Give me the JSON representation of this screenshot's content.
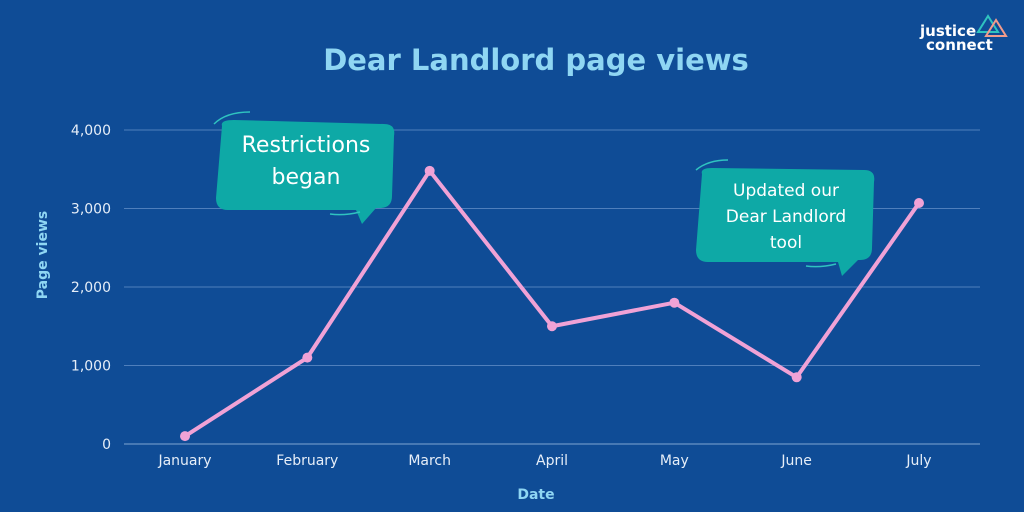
{
  "logo": {
    "line1": "justice",
    "line2": "connect"
  },
  "chart_data": {
    "type": "line",
    "title": "Dear Landlord page views",
    "xlabel": "Date",
    "ylabel": "Page views",
    "categories": [
      "January",
      "February",
      "March",
      "April",
      "May",
      "June",
      "July"
    ],
    "series": [
      {
        "values": [
          100,
          1100,
          3480,
          1500,
          1800,
          850,
          3070
        ]
      }
    ],
    "ylim": [
      0,
      4000
    ],
    "yticks": [
      "0",
      "1,000",
      "2,000",
      "3,000",
      "4,000"
    ],
    "grid": true,
    "colors": {
      "background": "#0f4c96",
      "line": "#f0a2d6",
      "title": "#8fd6f3",
      "callout": "#0ea9a6"
    },
    "annotations": [
      {
        "lines": [
          "Restrictions",
          "began"
        ],
        "near": "February-March"
      },
      {
        "lines": [
          "Updated our",
          "Dear Landlord",
          "tool"
        ],
        "near": "June-July"
      }
    ]
  }
}
